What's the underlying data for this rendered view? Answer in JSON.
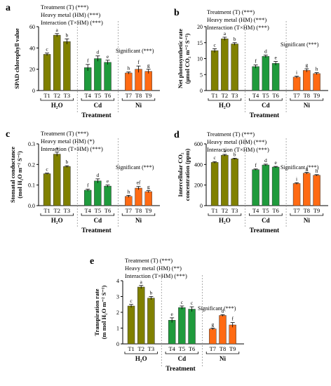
{
  "colors": {
    "H2O": "#808000",
    "Cd": "#1f9a3c",
    "Ni": "#ff6a13"
  },
  "chart_data": [
    {
      "type": "bar",
      "panel": "a",
      "ylabel": "SPAD chlorophyll value",
      "ylim": [
        0,
        60
      ],
      "yticks": [
        "0",
        "20",
        "40",
        "60"
      ],
      "categories": [
        "T1",
        "T2",
        "T3",
        "T4",
        "T5",
        "T6",
        "T7",
        "T8",
        "T9"
      ],
      "groups": [
        "H₂O",
        "Cd",
        "Ni"
      ],
      "values": [
        34,
        52,
        46,
        21.5,
        30,
        26.5,
        16.5,
        20,
        18
      ],
      "errors": [
        1.2,
        1.5,
        2.5,
        3.0,
        2.5,
        2.0,
        1.0,
        3.0,
        2.0
      ],
      "letters": [
        "c",
        "a",
        "b",
        "f",
        "d",
        "e",
        "h",
        "f",
        "g"
      ],
      "annotations": [
        "Treatment (T) (***)",
        "Heavy metal (HM) (***)",
        "Interaction (T×HM) (***)"
      ],
      "significance": "Significant (***)",
      "xlabel": "Treatment"
    },
    {
      "type": "bar",
      "panel": "b",
      "ylabel": "Net photosynthetic rate",
      "ylabel2": "(μmol CO₂ m⁻² S⁻¹)",
      "ylim": [
        0,
        20
      ],
      "yticks": [
        "0",
        "5",
        "10",
        "15",
        "20"
      ],
      "categories": [
        "T1",
        "T2",
        "T3",
        "T4",
        "T5",
        "T6",
        "T7",
        "T8",
        "T9"
      ],
      "groups": [
        "H₂O",
        "Cd",
        "Ni"
      ],
      "values": [
        12.5,
        16.2,
        14.6,
        7.5,
        10.7,
        8.5,
        4.2,
        6.3,
        5.3
      ],
      "errors": [
        0.6,
        0.5,
        0.4,
        0.5,
        0.4,
        0.6,
        0.3,
        0.5,
        0.3
      ],
      "letters": [
        "c",
        "a",
        "b",
        "f",
        "d",
        "e",
        "i",
        "g",
        "h"
      ],
      "annotations": [
        "Treatment (T) (***)",
        "Heavy metal (HM) (***)",
        "Interaction (T×HM) (***)"
      ],
      "significance": "Significant (***)",
      "xlabel": "Treatment"
    },
    {
      "type": "bar",
      "panel": "c",
      "ylabel": "Stomatal conductance",
      "ylabel2": "(mol H₂O m⁻² S⁻¹)",
      "ylim": [
        0,
        0.3
      ],
      "yticks": [
        "0.0",
        "0.1",
        "0.2",
        "0.3"
      ],
      "categories": [
        "T1",
        "T2",
        "T3",
        "T4",
        "T5",
        "T6",
        "T7",
        "T8",
        "T9"
      ],
      "groups": [
        "H₂O",
        "Cd",
        "Ni"
      ],
      "values": [
        0.155,
        0.25,
        0.19,
        0.075,
        0.12,
        0.095,
        0.045,
        0.085,
        0.068
      ],
      "errors": [
        0.003,
        0.01,
        0.004,
        0.005,
        0.01,
        0.005,
        0.005,
        0.008,
        0.005
      ],
      "letters": [
        "c",
        "a",
        "b",
        "f",
        "d",
        "e",
        "h",
        "ef",
        "g"
      ],
      "annotations": [
        "Treatment (T) (***)",
        "Heavy metal (HM) (*)",
        "Interaction (T×HM) (***)"
      ],
      "significance": "Significant (***)",
      "xlabel": "Treatment"
    },
    {
      "type": "bar",
      "panel": "d",
      "ylabel": "Intercellular CO₂",
      "ylabel2": "concentration (ppm)",
      "ylim": [
        0,
        600
      ],
      "yticks": [
        "0",
        "200",
        "400",
        "600"
      ],
      "categories": [
        "T1",
        "T2",
        "T3",
        "T4",
        "T5",
        "T6",
        "T7",
        "T8",
        "T9"
      ],
      "groups": [
        "H₂O",
        "Cd",
        "Ni"
      ],
      "values": [
        420,
        490,
        455,
        350,
        395,
        375,
        215,
        315,
        295
      ],
      "errors": [
        8,
        8,
        6,
        6,
        8,
        6,
        8,
        8,
        6
      ],
      "letters": [
        "c",
        "a",
        "b",
        "f",
        "d",
        "e",
        "i",
        "g",
        "h"
      ],
      "annotations": [
        "Treatment (T) (***)",
        "Heavy metal (HM) (***)",
        "Interaction (T×HM) (***)"
      ],
      "significance": "Significant (***)",
      "xlabel": "Treatment"
    },
    {
      "type": "bar",
      "panel": "e",
      "ylabel": "Transpiration rate",
      "ylabel2": "(m mol H₂O m⁻² S⁻¹)",
      "ylim": [
        0,
        4
      ],
      "yticks": [
        "0",
        "1",
        "2",
        "3",
        "4"
      ],
      "categories": [
        "T1",
        "T2",
        "T3",
        "T4",
        "T5",
        "T6",
        "T7",
        "T8",
        "T9"
      ],
      "groups": [
        "H₂O",
        "Cd",
        "Ni"
      ],
      "values": [
        2.4,
        3.6,
        2.9,
        1.5,
        2.3,
        2.2,
        0.95,
        1.8,
        1.2
      ],
      "errors": [
        0.1,
        0.1,
        0.1,
        0.15,
        0.1,
        0.15,
        0.05,
        0.05,
        0.15
      ],
      "letters": [
        "c",
        "a",
        "b",
        "e",
        "c",
        "c",
        "g",
        "d",
        "f"
      ],
      "annotations": [
        "Treatment (T) (***)",
        "Heavy metal (HM) (**)",
        "Interaction (T×HM) (***)"
      ],
      "significance": "Significant (***)",
      "xlabel": "Treatment"
    }
  ]
}
